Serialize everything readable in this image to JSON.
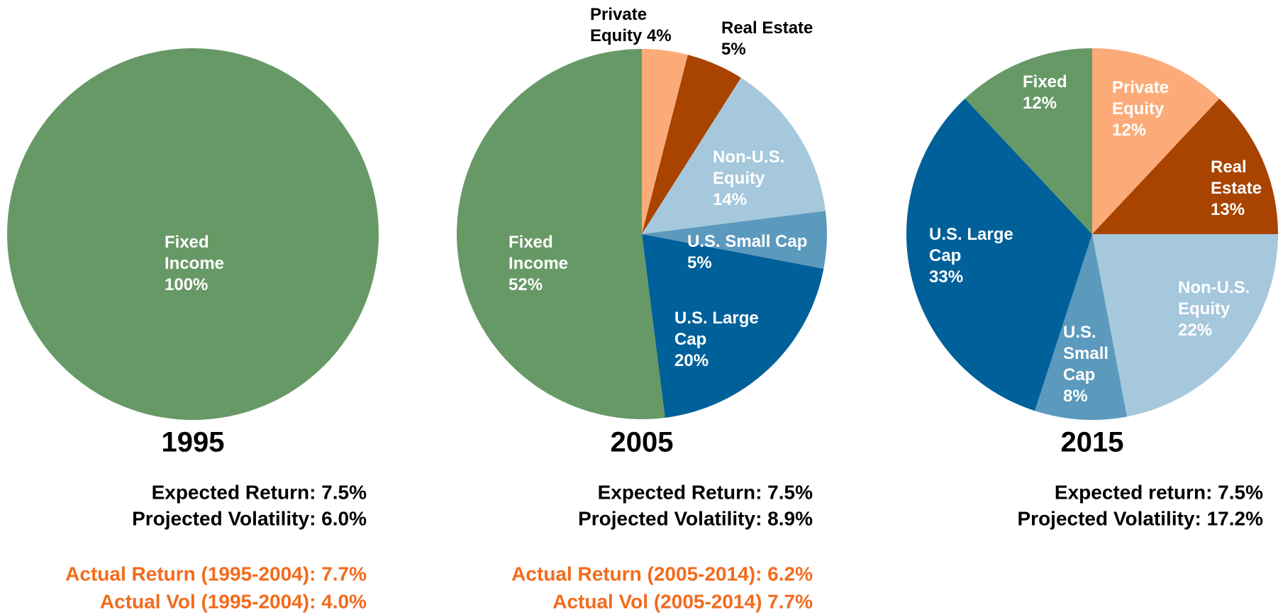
{
  "chart_data": [
    {
      "type": "pie",
      "title": "1995",
      "categories": [
        "Fixed Income"
      ],
      "values": [
        100
      ],
      "value_labels": [
        "100%"
      ],
      "colors": [
        "#679966"
      ],
      "label_colors": [
        "#ffffff"
      ],
      "annotations": [
        {
          "text": "Expected Return: 7.5%",
          "color": "#000000"
        },
        {
          "text": "Projected Volatility: 6.0%",
          "color": "#000000"
        },
        {
          "text": "Actual Return (1995-2004): 7.7%",
          "color": "#f26b1d"
        },
        {
          "text": "Actual Vol (1995-2004): 4.0%",
          "color": "#f26b1d"
        }
      ]
    },
    {
      "type": "pie",
      "title": "2005",
      "categories": [
        "Private Equity",
        "Real Estate",
        "Non-U.S. Equity",
        "U.S. Small Cap",
        "U.S. Large Cap",
        "Fixed Income"
      ],
      "values": [
        4,
        5,
        14,
        5,
        20,
        52
      ],
      "value_labels": [
        "4%",
        "5%",
        "14%",
        "5%",
        "20%",
        "52%"
      ],
      "colors": [
        "#fcab78",
        "#a84300",
        "#a6c8dc",
        "#5b9abd",
        "#00609a",
        "#679966"
      ],
      "label_colors": [
        "#000000",
        "#000000",
        "#ffffff",
        "#ffffff",
        "#ffffff",
        "#ffffff"
      ],
      "annotations": [
        {
          "text": "Expected Return: 7.5%",
          "color": "#000000"
        },
        {
          "text": "Projected Volatility: 8.9%",
          "color": "#000000"
        },
        {
          "text": "Actual Return (2005-2014): 6.2%",
          "color": "#f26b1d"
        },
        {
          "text": "Actual Vol (2005-2014) 7.7%",
          "color": "#f26b1d"
        }
      ]
    },
    {
      "type": "pie",
      "title": "2015",
      "categories": [
        "Private Equity",
        "Real Estate",
        "Non-U.S. Equity",
        "U.S. Small Cap",
        "U.S. Large Cap",
        "Fixed"
      ],
      "values": [
        12,
        13,
        22,
        8,
        33,
        12
      ],
      "value_labels": [
        "12%",
        "13%",
        "22%",
        "8%",
        "33%",
        "12%"
      ],
      "colors": [
        "#fcab78",
        "#a84300",
        "#a6c8dc",
        "#5b9abd",
        "#00609a",
        "#679966"
      ],
      "label_colors": [
        "#ffffff",
        "#ffffff",
        "#ffffff",
        "#ffffff",
        "#ffffff",
        "#ffffff"
      ],
      "annotations": [
        {
          "text": "Expected return: 7.5%",
          "color": "#000000"
        },
        {
          "text": "Projected Volatility: 17.2%",
          "color": "#000000"
        }
      ]
    }
  ]
}
